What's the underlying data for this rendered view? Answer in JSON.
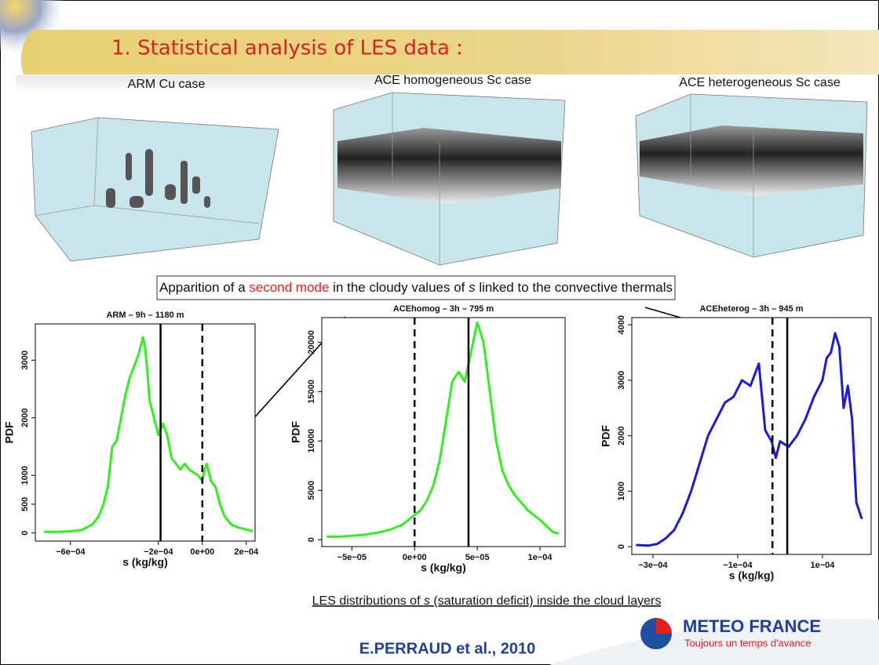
{
  "title": "1. Statistical analysis of LES data :",
  "panels": [
    "ARM Cu case",
    "ACE homogeneous Sc case",
    "ACE heterogeneous Sc case"
  ],
  "note": [
    {
      "text": "Apparition of a "
    },
    {
      "text": "second mode"
    },
    {
      "text": " in the cloudy values of "
    },
    {
      "text": "s"
    },
    {
      "text": " linked to the convective thermals"
    }
  ],
  "caption": [
    {
      "text": "LES distributions of "
    },
    {
      "text": "s"
    },
    {
      "text": " (saturation deficit) inside the cloud layers"
    }
  ],
  "author": "E.PERRAUD et al., 2010",
  "logo": {
    "name": "METEO FRANCE",
    "slogan": "Toujours un temps d'avance"
  },
  "chart_data": [
    {
      "type": "line",
      "title": "ARM – 9h – 1180 m",
      "x_label": "s (kg/kg)",
      "y_label": "PDF",
      "color": "#33ee22",
      "x": [
        -0.00072,
        -0.00065,
        -0.0006,
        -0.00055,
        -0.0005,
        -0.00047,
        -0.00045,
        -0.00043,
        -0.00041,
        -0.00039,
        -0.00037,
        -0.00035,
        -0.00033,
        -0.00031,
        -0.00029,
        -0.00027,
        -0.00026,
        -0.00025,
        -0.00024,
        -0.00022,
        -0.0002,
        -0.00018,
        -0.00016,
        -0.00014,
        -0.00012,
        -0.0001,
        -8e-05,
        -6e-05,
        -4e-05,
        -2e-05,
        0,
        1e-05,
        2e-05,
        4e-05,
        6e-05,
        8e-05,
        0.0001,
        0.00013,
        0.00016,
        0.0002,
        0.00023
      ],
      "values": [
        20,
        20,
        30,
        50,
        150,
        300,
        500,
        800,
        1500,
        1600,
        2000,
        2400,
        2700,
        2900,
        3100,
        3400,
        3200,
        2800,
        2300,
        2000,
        1700,
        1900,
        1700,
        1300,
        1200,
        1100,
        1200,
        1100,
        1050,
        1000,
        900,
        1100,
        1200,
        900,
        800,
        500,
        300,
        150,
        100,
        60,
        30
      ],
      "vlines": [
        {
          "value": -0.00019,
          "dashed": false
        },
        {
          "value": 0,
          "dashed": true
        }
      ],
      "xlim": [
        -0.00076,
        0.00024
      ],
      "ylim": [
        -140,
        3630
      ],
      "xticks": [
        {
          "value": -0.0006,
          "label": "−6e−04"
        },
        {
          "value": -0.0002,
          "label": "−2e−04"
        },
        {
          "value": 0,
          "label": "0e+00"
        },
        {
          "value": 0.0002,
          "label": "2e−04"
        }
      ],
      "yticks": [
        0,
        500,
        1000,
        2000,
        3000
      ]
    },
    {
      "type": "line",
      "title": "ACEhomog – 3h – 795 m",
      "x_label": "s (kg/kg)",
      "y_label": "PDF",
      "color": "#33ee22",
      "x": [
        -7e-05,
        -6e-05,
        -5e-05,
        -4e-05,
        -3e-05,
        -2e-05,
        -1e-05,
        0,
        5e-06,
        1e-05,
        1.5e-05,
        2e-05,
        2.5e-05,
        3e-05,
        3.5e-05,
        4e-05,
        4.5e-05,
        5e-05,
        5.5e-05,
        6e-05,
        6.5e-05,
        7e-05,
        7.5e-05,
        8e-05,
        9e-05,
        0.0001,
        0.00011,
        0.000115
      ],
      "values": [
        300,
        300,
        400,
        500,
        700,
        1000,
        1500,
        2500,
        3000,
        4000,
        5500,
        8000,
        12000,
        16000,
        17000,
        16000,
        19000,
        22000,
        20000,
        15000,
        10000,
        7000,
        5500,
        4500,
        3000,
        2000,
        800,
        600
      ],
      "vlines": [
        {
          "value": 0,
          "dashed": true
        },
        {
          "value": 4.3e-05,
          "dashed": false
        }
      ],
      "xlim": [
        -7.4e-05,
        0.00012
      ],
      "ylim": [
        -700,
        22500
      ],
      "xticks": [
        {
          "value": -5e-05,
          "label": "−5e−05"
        },
        {
          "value": 0,
          "label": "0e+00"
        },
        {
          "value": 5e-05,
          "label": "5e−05"
        },
        {
          "value": 0.0001,
          "label": "1e−04"
        }
      ],
      "yticks": [
        0,
        5000,
        10000,
        15000,
        20000
      ]
    },
    {
      "type": "line",
      "title": "ACEheterog – 3h – 945 m",
      "x_label": "s (kg/kg)",
      "y_label": "PDF",
      "color": "#1a1adc",
      "x": [
        -0.00034,
        -0.00031,
        -0.00029,
        -0.00027,
        -0.00025,
        -0.00023,
        -0.00021,
        -0.00019,
        -0.00017,
        -0.00015,
        -0.00013,
        -0.00011,
        -9e-05,
        -7e-05,
        -5e-05,
        -3.5e-05,
        -2e-05,
        -1e-05,
        0,
        2e-05,
        4e-05,
        6e-05,
        8e-05,
        0.0001,
        0.00011,
        0.00012,
        0.00013,
        0.00014,
        0.00015,
        0.00016,
        0.00017,
        0.00018,
        0.000193
      ],
      "values": [
        30,
        20,
        50,
        150,
        300,
        600,
        1000,
        1500,
        2000,
        2300,
        2600,
        2700,
        3000,
        2900,
        3300,
        2100,
        1900,
        1600,
        1900,
        1800,
        2000,
        2300,
        2700,
        3000,
        3400,
        3500,
        3850,
        3600,
        2500,
        2900,
        2300,
        800,
        500
      ],
      "vlines": [
        {
          "value": -1.8e-05,
          "dashed": true
        },
        {
          "value": 1.7e-05,
          "dashed": false
        }
      ],
      "xlim": [
        -0.00035,
        0.000215
      ],
      "ylim": [
        -140,
        4130
      ],
      "xticks": [
        {
          "value": -0.0003,
          "label": "−3e−04"
        },
        {
          "value": -0.0001,
          "label": "−1e−04"
        },
        {
          "value": 0.0001,
          "label": "1e−04"
        }
      ],
      "yticks": [
        0,
        1000,
        2000,
        3000,
        4000
      ]
    }
  ]
}
